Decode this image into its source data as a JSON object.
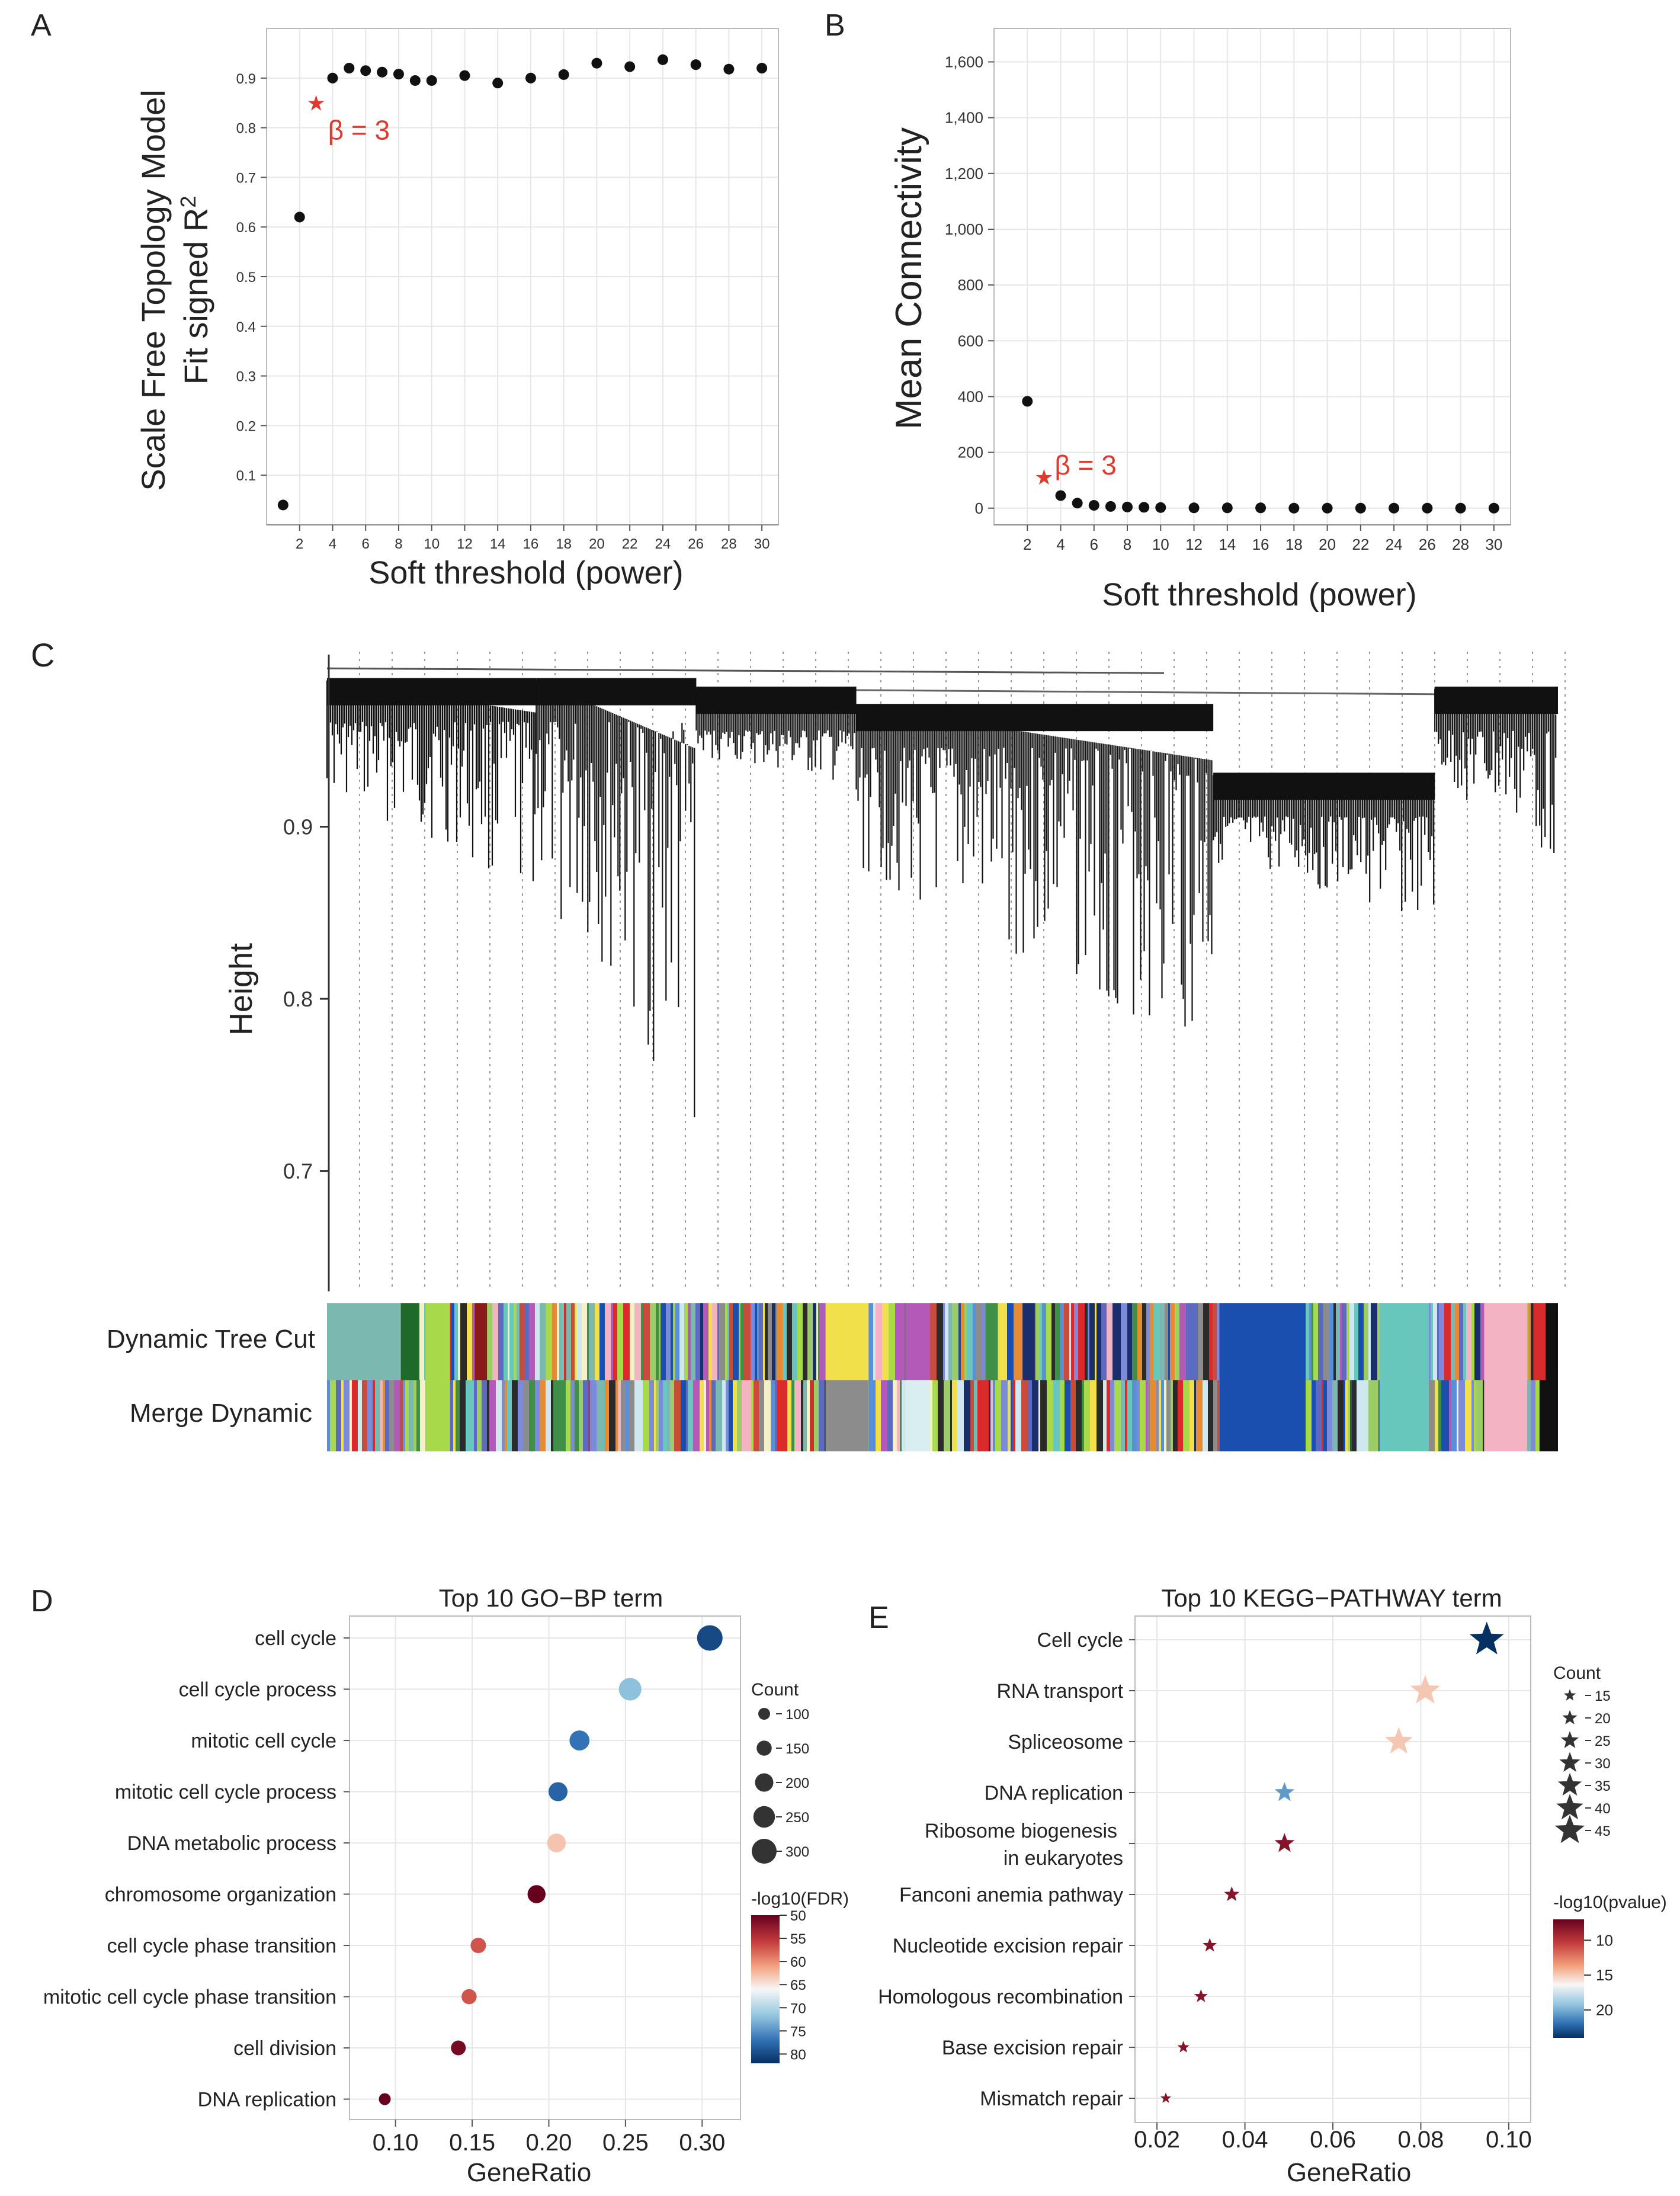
{
  "panels": {
    "A": {
      "label": "A",
      "chart_data": {
        "type": "scatter",
        "xlabel": "Soft threshold (power)",
        "ylabel_line1": "Scale Free Topology Model",
        "ylabel_line2": "Fit signed R",
        "ylabel_sup": "2",
        "xlim": [
          0,
          31
        ],
        "ylim": [
          0,
          1.0
        ],
        "xticks": [
          2,
          4,
          6,
          8,
          10,
          12,
          14,
          16,
          18,
          20,
          22,
          24,
          26,
          28,
          30
        ],
        "yticks": [
          0.1,
          0.2,
          0.3,
          0.4,
          0.5,
          0.6,
          0.7,
          0.8,
          0.9
        ],
        "ytick_labels": [
          "0.1",
          "0.2",
          "0.3",
          "0.4",
          "0.5",
          "0.6",
          "0.7",
          "0.8",
          "0.9"
        ],
        "points": [
          {
            "x": 1,
            "y": 0.04
          },
          {
            "x": 2,
            "y": 0.62
          },
          {
            "x": 4,
            "y": 0.9
          },
          {
            "x": 5,
            "y": 0.92
          },
          {
            "x": 6,
            "y": 0.915
          },
          {
            "x": 7,
            "y": 0.912
          },
          {
            "x": 8,
            "y": 0.908
          },
          {
            "x": 9,
            "y": 0.895
          },
          {
            "x": 10,
            "y": 0.895
          },
          {
            "x": 12,
            "y": 0.905
          },
          {
            "x": 14,
            "y": 0.89
          },
          {
            "x": 16,
            "y": 0.9
          },
          {
            "x": 18,
            "y": 0.907
          },
          {
            "x": 20,
            "y": 0.93
          },
          {
            "x": 22,
            "y": 0.923
          },
          {
            "x": 24,
            "y": 0.937
          },
          {
            "x": 26,
            "y": 0.927
          },
          {
            "x": 28,
            "y": 0.918
          },
          {
            "x": 30,
            "y": 0.92
          }
        ],
        "highlight": {
          "x": 3,
          "y": 0.85,
          "label": "β = 3",
          "color": "#e03a2f"
        }
      }
    },
    "B": {
      "label": "B",
      "chart_data": {
        "type": "scatter",
        "xlabel": "Soft threshold (power)",
        "ylabel": "Mean Connectivity",
        "xlim": [
          0,
          31
        ],
        "ylim": [
          -60,
          1720
        ],
        "xticks": [
          2,
          4,
          6,
          8,
          10,
          12,
          14,
          16,
          18,
          20,
          22,
          24,
          26,
          28,
          30
        ],
        "yticks": [
          0,
          200,
          400,
          600,
          800,
          1000,
          1200,
          1400,
          1600
        ],
        "ytick_labels": [
          "0",
          "200",
          "400",
          "600",
          "800",
          "1,000",
          "1,200",
          "1,400",
          "1,600"
        ],
        "points": [
          {
            "x": 2,
            "y": 383
          },
          {
            "x": 4,
            "y": 45
          },
          {
            "x": 5,
            "y": 18
          },
          {
            "x": 6,
            "y": 10
          },
          {
            "x": 7,
            "y": 6
          },
          {
            "x": 8,
            "y": 4
          },
          {
            "x": 9,
            "y": 3
          },
          {
            "x": 10,
            "y": 2
          },
          {
            "x": 12,
            "y": 1
          },
          {
            "x": 14,
            "y": 1
          },
          {
            "x": 16,
            "y": 1
          },
          {
            "x": 18,
            "y": 0
          },
          {
            "x": 20,
            "y": 0
          },
          {
            "x": 22,
            "y": 0
          },
          {
            "x": 24,
            "y": 0
          },
          {
            "x": 26,
            "y": 0
          },
          {
            "x": 28,
            "y": 0
          },
          {
            "x": 30,
            "y": 0
          }
        ],
        "highlight": {
          "x": 3,
          "y": 112,
          "label": "β = 3",
          "color": "#e03a2f"
        }
      }
    },
    "C": {
      "label": "C",
      "chart_data": {
        "type": "dendrogram",
        "ylabel": "Height",
        "ylim": [
          0.63,
          1.0
        ],
        "yticks": [
          0.7,
          0.8,
          0.9
        ],
        "ytick_labels": [
          "0.7",
          "0.8",
          "0.9"
        ],
        "row_labels": [
          "Dynamic Tree Cut",
          "Merge Dynamic"
        ],
        "clusters": [
          {
            "start": 0.0,
            "end": 0.17,
            "top": 0.985,
            "bottom": 0.86
          },
          {
            "start": 0.17,
            "end": 0.3,
            "top": 0.985,
            "bottom": 0.72
          },
          {
            "start": 0.3,
            "end": 0.43,
            "top": 0.98,
            "bottom": 0.92
          },
          {
            "start": 0.43,
            "end": 0.72,
            "top": 0.97,
            "bottom": 0.76
          },
          {
            "start": 0.72,
            "end": 0.9,
            "top": 0.93,
            "bottom": 0.84
          },
          {
            "start": 0.9,
            "end": 1.0,
            "top": 0.98,
            "bottom": 0.88
          }
        ],
        "palette": [
          "#7ab8b0",
          "#5a8fd8",
          "#c94b3c",
          "#7d8ad8",
          "#f2e04b",
          "#a8d94b",
          "#e88a2f",
          "#b35ab8",
          "#3f8f48",
          "#1a2e6b",
          "#8c8c8c",
          "#cfe8f0",
          "#f4b3c2",
          "#1a4fb0",
          "#68c7bd",
          "#2b2b2b",
          "#d92b2b",
          "#f5f0c8",
          "#5c6bc0",
          "#9ccc65"
        ],
        "dynamic_blocks": [
          {
            "start": 0.0,
            "end": 0.06,
            "color": "#7ab8b0"
          },
          {
            "start": 0.06,
            "end": 0.075,
            "color": "#1e6a2a"
          },
          {
            "start": 0.08,
            "end": 0.1,
            "color": "#a8d94b"
          },
          {
            "start": 0.12,
            "end": 0.13,
            "color": "#8b1a1a"
          },
          {
            "start": 0.4,
            "end": 0.415,
            "color": "#b35ab8"
          },
          {
            "start": 0.405,
            "end": 0.44,
            "color": "#f2e04b"
          },
          {
            "start": 0.47,
            "end": 0.49,
            "color": "#b35ab8"
          },
          {
            "start": 0.535,
            "end": 0.545,
            "color": "#3f8f48"
          },
          {
            "start": 0.565,
            "end": 0.575,
            "color": "#1a2e6b"
          },
          {
            "start": 0.725,
            "end": 0.795,
            "color": "#1a4fb0"
          },
          {
            "start": 0.855,
            "end": 0.895,
            "color": "#68c7bd"
          },
          {
            "start": 0.94,
            "end": 0.975,
            "color": "#f4b3c2"
          },
          {
            "start": 0.98,
            "end": 0.99,
            "color": "#d92b2b"
          },
          {
            "start": 0.99,
            "end": 1.0,
            "color": "#111111"
          }
        ],
        "merge_blocks": [
          {
            "start": 0.08,
            "end": 0.1,
            "color": "#a8d94b"
          },
          {
            "start": 0.405,
            "end": 0.44,
            "color": "#8c8c8c"
          },
          {
            "start": 0.47,
            "end": 0.49,
            "color": "#d8eef0"
          },
          {
            "start": 0.725,
            "end": 0.795,
            "color": "#1a4fb0"
          },
          {
            "start": 0.855,
            "end": 0.895,
            "color": "#68c7bd"
          },
          {
            "start": 0.94,
            "end": 0.975,
            "color": "#f4b3c2"
          },
          {
            "start": 0.985,
            "end": 1.0,
            "color": "#111111"
          }
        ]
      }
    },
    "D": {
      "label": "D",
      "chart_data": {
        "type": "scatter",
        "title": "Top 10 GO−BP term",
        "xlabel": "GeneRatio",
        "xlim": [
          0.07,
          0.325
        ],
        "xticks": [
          0.1,
          0.15,
          0.2,
          0.25,
          0.3
        ],
        "xtick_labels": [
          "0.10",
          "0.15",
          "0.20",
          "0.25",
          "0.30"
        ],
        "categories": [
          "cell cycle",
          "cell cycle process",
          "mitotic cell cycle",
          "mitotic cell cycle process",
          "DNA metabolic process",
          "chromosome organization",
          "cell cycle phase transition",
          "mitotic cell cycle phase transition",
          "cell division",
          "DNA replication"
        ],
        "points": [
          {
            "x": 0.305,
            "count": 310,
            "fdr": 80
          },
          {
            "x": 0.253,
            "count": 265,
            "fdr": 72
          },
          {
            "x": 0.22,
            "count": 225,
            "fdr": 77
          },
          {
            "x": 0.206,
            "count": 210,
            "fdr": 78
          },
          {
            "x": 0.205,
            "count": 205,
            "fdr": 63
          },
          {
            "x": 0.192,
            "count": 195,
            "fdr": 50
          },
          {
            "x": 0.154,
            "count": 155,
            "fdr": 57
          },
          {
            "x": 0.148,
            "count": 150,
            "fdr": 57
          },
          {
            "x": 0.141,
            "count": 145,
            "fdr": 51
          },
          {
            "x": 0.093,
            "count": 100,
            "fdr": 50
          }
        ],
        "size_legend": {
          "title": "Count",
          "values": [
            100,
            150,
            200,
            250,
            300
          ]
        },
        "color_legend": {
          "title": "-log10(FDR)",
          "min": 50,
          "max": 82,
          "ticks": [
            50,
            55,
            60,
            65,
            70,
            75,
            80
          ]
        }
      }
    },
    "E": {
      "label": "E",
      "chart_data": {
        "type": "scatter",
        "title": "Top 10 KEGG−PATHWAY term",
        "xlabel": "GeneRatio",
        "xlim": [
          0.015,
          0.105
        ],
        "xticks": [
          0.02,
          0.04,
          0.06,
          0.08,
          0.1
        ],
        "xtick_labels": [
          "0.02",
          "0.04",
          "0.06",
          "0.08",
          "0.10"
        ],
        "categories": [
          "Cell cycle",
          "RNA transport",
          "Spliceosome",
          "DNA replication",
          "Ribosome biogenesis in eukaryotes",
          "Fanconi anemia pathway",
          "Nucleotide excision repair",
          "Homologous recombination",
          "Base excision repair",
          "Mismatch repair"
        ],
        "category_lines": [
          [
            "Cell cycle"
          ],
          [
            "RNA transport"
          ],
          [
            "Spliceosome"
          ],
          [
            "DNA replication"
          ],
          [
            "Ribosome biogenesis",
            "in eukaryotes"
          ],
          [
            "Fanconi anemia pathway"
          ],
          [
            "Nucleotide excision repair"
          ],
          [
            "Homologous recombination"
          ],
          [
            "Base excision repair"
          ],
          [
            "Mismatch repair"
          ]
        ],
        "points": [
          {
            "x": 0.095,
            "count": 47,
            "pval": 24
          },
          {
            "x": 0.081,
            "count": 40,
            "pval": 14
          },
          {
            "x": 0.075,
            "count": 37,
            "pval": 14
          },
          {
            "x": 0.049,
            "count": 25,
            "pval": 20
          },
          {
            "x": 0.049,
            "count": 25,
            "pval": 8
          },
          {
            "x": 0.037,
            "count": 18,
            "pval": 8
          },
          {
            "x": 0.032,
            "count": 16,
            "pval": 8
          },
          {
            "x": 0.03,
            "count": 15,
            "pval": 8
          },
          {
            "x": 0.026,
            "count": 13,
            "pval": 8
          },
          {
            "x": 0.022,
            "count": 11,
            "pval": 8
          }
        ],
        "size_legend": {
          "title": "Count",
          "values": [
            15,
            20,
            25,
            30,
            35,
            40,
            45
          ]
        },
        "color_legend": {
          "title": "-log10(pvalue)",
          "min": 7,
          "max": 24,
          "ticks": [
            10,
            15,
            20
          ]
        }
      }
    }
  }
}
